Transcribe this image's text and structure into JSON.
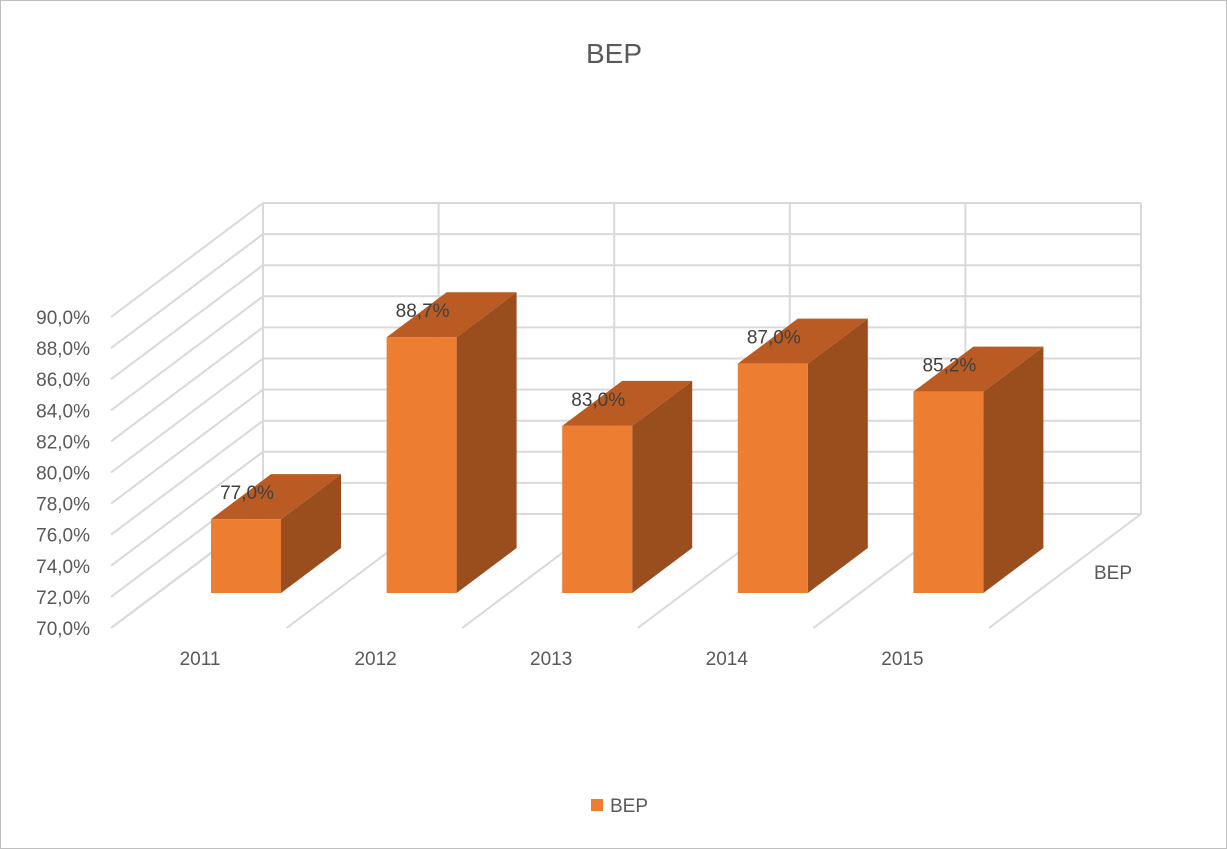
{
  "chart_data": {
    "type": "bar",
    "title": "BEP",
    "categories": [
      "2011",
      "2012",
      "2013",
      "2014",
      "2015"
    ],
    "series": [
      {
        "name": "BEP",
        "values": [
          77.0,
          88.7,
          83.0,
          87.0,
          85.2
        ],
        "data_labels": [
          "77,0%",
          "88,7%",
          "83,0%",
          "87,0%",
          "85,2%"
        ]
      }
    ],
    "y_ticks": [
      "70,0%",
      "72,0%",
      "74,0%",
      "76,0%",
      "78,0%",
      "80,0%",
      "82,0%",
      "84,0%",
      "86,0%",
      "88,0%",
      "90,0%"
    ],
    "ylim": [
      70,
      90
    ],
    "depth_axis_label": "BEP",
    "grid": true,
    "legend": "bottom",
    "colors": {
      "bar_front": "#ED7D31",
      "bar_side": "#9A4E1E",
      "bar_top": "#B95B22",
      "grid": "#d9d9d9",
      "text": "#595959"
    }
  }
}
